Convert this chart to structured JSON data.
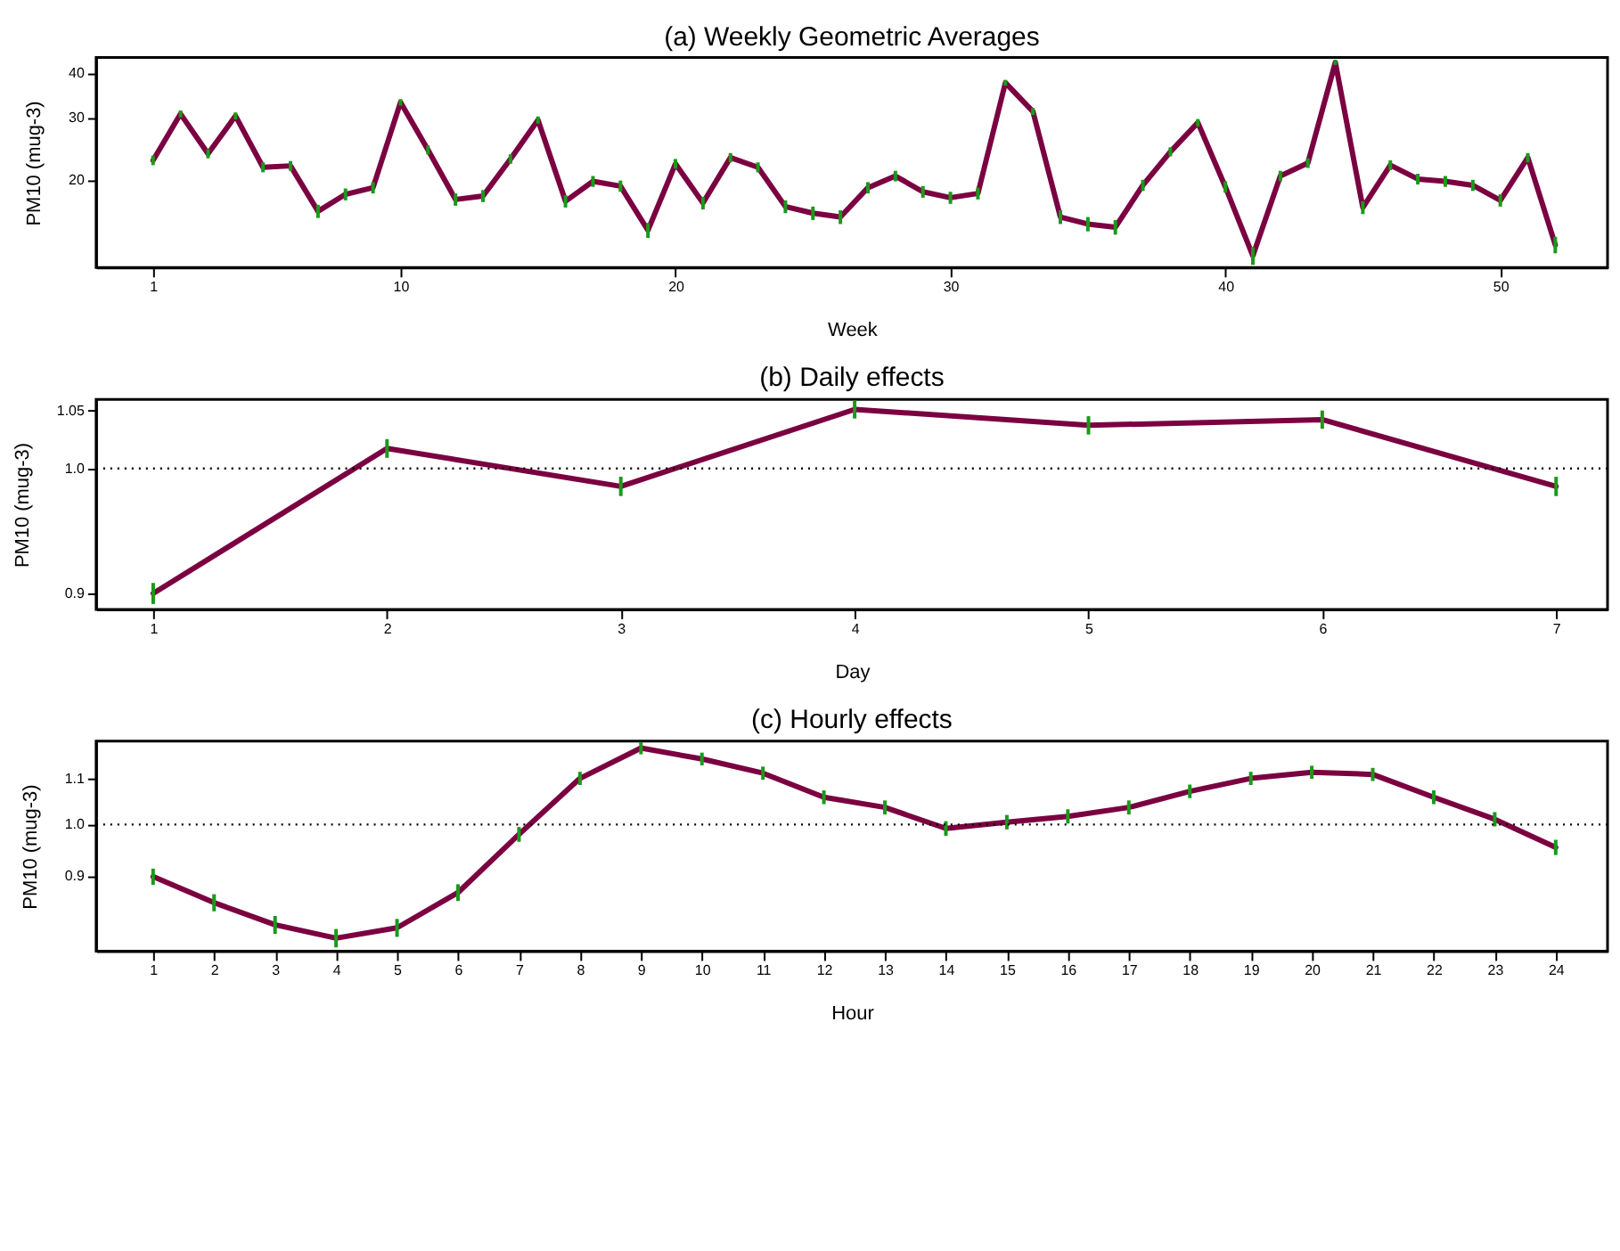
{
  "chart_data": [
    {
      "type": "line",
      "title": "(a) Weekly Geometric Averages",
      "xlabel": "Week",
      "ylabel": "PM10 (mug-3)",
      "log": "y",
      "grid": false,
      "marker": "none",
      "line_style": "solid",
      "x": [
        1,
        2,
        3,
        4,
        5,
        6,
        7,
        8,
        9,
        10,
        11,
        12,
        13,
        14,
        15,
        16,
        17,
        18,
        19,
        20,
        21,
        22,
        23,
        24,
        25,
        26,
        27,
        28,
        29,
        30,
        31,
        32,
        33,
        34,
        35,
        36,
        37,
        38,
        39,
        40,
        41,
        42,
        43,
        44,
        45,
        46,
        47,
        48,
        49,
        50,
        51,
        52
      ],
      "xlim": [
        -1.07,
        53.9
      ],
      "xticks": [
        1,
        10,
        20,
        30,
        40,
        50
      ],
      "ylim": [
        11.3,
        44.3
      ],
      "yticks": [
        20,
        30,
        40
      ],
      "series": [
        {
          "color": "#7b0041",
          "values": [
            22.7,
            30.7,
            23.7,
            30.3,
            21.7,
            21.9,
            16.3,
            18.2,
            19.0,
            33.1,
            24.3,
            17.6,
            18.0,
            22.9,
            29.5,
            17.4,
            19.8,
            19.2,
            14.4,
            22.2,
            17.2,
            23.1,
            21.7,
            16.8,
            16.1,
            15.7,
            19.0,
            20.5,
            18.5,
            17.8,
            18.3,
            37.6,
            31.2,
            15.7,
            15.0,
            14.7,
            19.3,
            24.0,
            29.0,
            19.1,
            12.2,
            20.5,
            22.3,
            42.9,
            16.7,
            22.0,
            20.1,
            19.8,
            19.3,
            17.5,
            23.1,
            13.1
          ],
          "errors": [
            0.7,
            0.7,
            0.7,
            0.7,
            0.7,
            0.7,
            0.7,
            0.7,
            0.7,
            0.7,
            0.7,
            0.7,
            0.7,
            0.7,
            0.7,
            0.7,
            0.7,
            0.7,
            0.7,
            0.7,
            0.7,
            0.7,
            0.7,
            0.7,
            0.7,
            0.7,
            0.7,
            0.7,
            0.7,
            0.7,
            0.7,
            0.7,
            0.7,
            0.7,
            0.7,
            0.7,
            0.7,
            0.7,
            0.7,
            0.7,
            0.7,
            0.7,
            0.7,
            0.7,
            0.7,
            0.7,
            0.7,
            0.7,
            0.7,
            0.7,
            0.7,
            0.7
          ]
        }
      ]
    },
    {
      "type": "line",
      "title": "(b) Daily effects",
      "xlabel": "Day",
      "ylabel": "PM10 (mug-3)",
      "log": "y",
      "grid": false,
      "marker": "none",
      "line_style": "solid",
      "x": [
        1,
        2,
        3,
        4,
        5,
        6,
        7
      ],
      "xlim": [
        0.756,
        7.22
      ],
      "xticks": [
        1,
        2,
        3,
        4,
        5,
        6,
        7
      ],
      "ylim": [
        0.888,
        1.06
      ],
      "yticks": [
        0.9,
        {
          "value": 1.0,
          "label": "1.0"
        },
        1.05
      ],
      "ref_lines": [
        {
          "axis": "y",
          "value": 1.0,
          "line_style": "dotted",
          "color": "#000000"
        }
      ],
      "series": [
        {
          "color": "#7b0041",
          "values": [
            0.9,
            1.017,
            0.985,
            1.051,
            1.037,
            1.042,
            0.985
          ],
          "errors": [
            0.008,
            0.008,
            0.008,
            0.008,
            0.008,
            0.008,
            0.008
          ]
        }
      ]
    },
    {
      "type": "line",
      "title": "(c) Hourly effects",
      "xlabel": "Hour",
      "ylabel": "PM10 (mug-3)",
      "log": "y",
      "grid": false,
      "marker": "none",
      "line_style": "solid",
      "x": [
        1,
        2,
        3,
        4,
        5,
        6,
        7,
        8,
        9,
        10,
        11,
        12,
        13,
        14,
        15,
        16,
        17,
        18,
        19,
        20,
        21,
        22,
        23,
        24
      ],
      "xlim": [
        0.066,
        24.85
      ],
      "xticks": [
        1,
        2,
        3,
        4,
        5,
        6,
        7,
        8,
        9,
        10,
        11,
        12,
        13,
        14,
        15,
        16,
        17,
        18,
        19,
        20,
        21,
        22,
        23,
        24
      ],
      "ylim": [
        0.77,
        1.188
      ],
      "yticks": [
        0.9,
        {
          "value": 1.0,
          "label": "1.0"
        },
        1.1
      ],
      "ref_lines": [
        {
          "axis": "y",
          "value": 1.0,
          "line_style": "dotted",
          "color": "#000000"
        }
      ],
      "series": [
        {
          "color": "#7b0041",
          "values": [
            0.898,
            0.851,
            0.813,
            0.791,
            0.808,
            0.869,
            0.98,
            1.1,
            1.171,
            1.145,
            1.112,
            1.058,
            1.036,
            0.992,
            1.005,
            1.017,
            1.036,
            1.071,
            1.1,
            1.114,
            1.109,
            1.058,
            1.011,
            0.954
          ],
          "errors": [
            0.015,
            0.015,
            0.015,
            0.015,
            0.015,
            0.015,
            0.015,
            0.015,
            0.015,
            0.015,
            0.015,
            0.015,
            0.015,
            0.015,
            0.015,
            0.015,
            0.015,
            0.015,
            0.015,
            0.015,
            0.015,
            0.015,
            0.015,
            0.015
          ]
        }
      ]
    }
  ]
}
